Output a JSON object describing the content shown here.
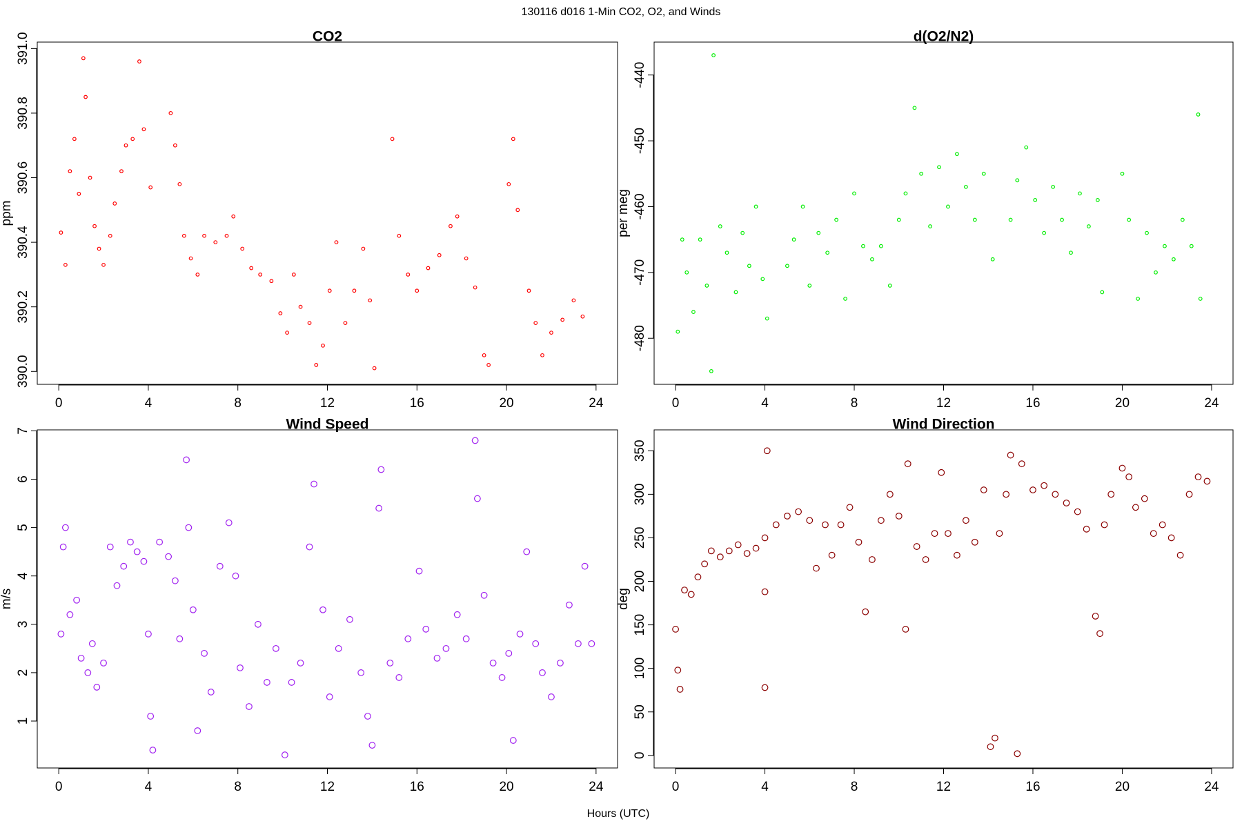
{
  "title": "130116   d016   1-Min CO2, O2, and Winds",
  "xlabel": "Hours (UTC)",
  "chart_data": [
    {
      "type": "scatter",
      "title": "CO2",
      "ylabel": "ppm",
      "color": "#ff0000",
      "xlim": [
        -0.96,
        24.96
      ],
      "xticks": [
        0,
        4,
        8,
        12,
        16,
        20,
        24
      ],
      "ylim": [
        389.96,
        391.02
      ],
      "yticks": [
        {
          "value": 390,
          "label": "390.0"
        },
        390.2,
        390.4,
        390.6,
        390.8,
        {
          "value": 391,
          "label": "391.0"
        }
      ],
      "x": [
        0.1,
        0.3,
        0.5,
        0.7,
        0.9,
        1.1,
        1.2,
        1.4,
        1.6,
        1.8,
        2.0,
        2.3,
        2.5,
        2.8,
        3.0,
        3.3,
        3.6,
        3.8,
        4.1,
        5.0,
        5.2,
        5.4,
        5.6,
        5.9,
        6.2,
        6.5,
        7.0,
        7.5,
        7.8,
        8.2,
        8.6,
        9.0,
        9.5,
        9.9,
        10.2,
        10.5,
        10.8,
        11.2,
        11.5,
        11.8,
        12.1,
        12.4,
        12.8,
        13.2,
        13.6,
        13.9,
        14.1,
        14.9,
        15.2,
        15.6,
        16.0,
        16.5,
        17.0,
        17.5,
        17.8,
        18.2,
        18.6,
        19.0,
        19.2,
        20.1,
        20.3,
        20.5,
        21.0,
        21.3,
        21.6,
        22.0,
        22.5,
        23.0,
        23.4
      ],
      "values": [
        390.43,
        390.33,
        390.62,
        390.72,
        390.55,
        390.97,
        390.85,
        390.6,
        390.45,
        390.38,
        390.33,
        390.42,
        390.52,
        390.62,
        390.7,
        390.72,
        390.96,
        390.75,
        390.57,
        390.8,
        390.7,
        390.58,
        390.42,
        390.35,
        390.3,
        390.42,
        390.4,
        390.42,
        390.48,
        390.38,
        390.32,
        390.3,
        390.28,
        390.18,
        390.12,
        390.3,
        390.2,
        390.15,
        390.02,
        390.08,
        390.25,
        390.4,
        390.15,
        390.25,
        390.38,
        390.22,
        390.01,
        390.72,
        390.42,
        390.3,
        390.25,
        390.32,
        390.36,
        390.45,
        390.48,
        390.35,
        390.26,
        390.05,
        390.02,
        390.58,
        390.72,
        390.5,
        390.25,
        390.15,
        390.05,
        390.12,
        390.16,
        390.22,
        390.17
      ]
    },
    {
      "type": "scatter",
      "title": "d(O2/N2)",
      "ylabel": "per meg",
      "color": "#00ee00",
      "xlim": [
        -0.96,
        24.96
      ],
      "xticks": [
        0,
        4,
        8,
        12,
        16,
        20,
        24
      ],
      "ylim": [
        -487,
        -435
      ],
      "yticks": [
        -480,
        -470,
        -460,
        -450,
        -440
      ],
      "x": [
        0.1,
        0.3,
        0.5,
        0.8,
        1.1,
        1.4,
        1.6,
        1.7,
        2.0,
        2.3,
        2.7,
        3.0,
        3.3,
        3.6,
        3.9,
        4.1,
        5.0,
        5.3,
        5.7,
        6.0,
        6.4,
        6.8,
        7.2,
        7.6,
        8.0,
        8.4,
        8.8,
        9.2,
        9.6,
        10.0,
        10.3,
        10.7,
        11.0,
        11.4,
        11.8,
        12.2,
        12.6,
        13.0,
        13.4,
        13.8,
        14.2,
        15.0,
        15.3,
        15.7,
        16.1,
        16.5,
        16.9,
        17.3,
        17.7,
        18.1,
        18.5,
        18.9,
        19.1,
        20.0,
        20.3,
        20.7,
        21.1,
        21.5,
        21.9,
        22.3,
        22.7,
        23.1,
        23.4,
        23.5
      ],
      "values": [
        -479,
        -465,
        -470,
        -476,
        -465,
        -472,
        -485,
        -437,
        -463,
        -467,
        -473,
        -464,
        -469,
        -460,
        -471,
        -477,
        -469,
        -465,
        -460,
        -472,
        -464,
        -467,
        -462,
        -474,
        -458,
        -466,
        -468,
        -466,
        -472,
        -462,
        -458,
        -445,
        -455,
        -463,
        -454,
        -460,
        -452,
        -457,
        -462,
        -455,
        -468,
        -462,
        -456,
        -451,
        -459,
        -464,
        -457,
        -462,
        -467,
        -458,
        -463,
        -459,
        -473,
        -455,
        -462,
        -474,
        -464,
        -470,
        -466,
        -468,
        -462,
        -466,
        -446,
        -474
      ]
    },
    {
      "type": "scatter",
      "title": "Wind Speed",
      "ylabel": "m/s",
      "color": "#a020f0",
      "xlim": [
        -0.96,
        24.96
      ],
      "xticks": [
        0,
        4,
        8,
        12,
        16,
        20,
        24
      ],
      "ylim": [
        0.03,
        7.02
      ],
      "yticks": [
        1,
        2,
        3,
        4,
        5,
        6,
        7
      ],
      "x": [
        0.1,
        0.2,
        0.3,
        0.5,
        0.8,
        1.0,
        1.3,
        1.5,
        1.7,
        2.0,
        2.3,
        2.6,
        2.9,
        3.2,
        3.5,
        3.8,
        4.0,
        4.1,
        4.2,
        4.5,
        4.9,
        5.2,
        5.4,
        5.7,
        5.8,
        6.0,
        6.2,
        6.5,
        6.8,
        7.2,
        7.6,
        7.9,
        8.1,
        8.5,
        8.9,
        9.3,
        9.7,
        10.1,
        10.4,
        10.8,
        11.2,
        11.4,
        11.8,
        12.1,
        12.5,
        13.0,
        13.5,
        13.8,
        14.0,
        14.3,
        14.4,
        14.8,
        15.2,
        15.6,
        16.1,
        16.4,
        16.9,
        17.3,
        17.8,
        18.2,
        18.6,
        18.7,
        19.0,
        19.4,
        19.8,
        20.1,
        20.3,
        20.6,
        20.9,
        21.3,
        21.6,
        22.0,
        22.4,
        22.8,
        23.2,
        23.5,
        23.8
      ],
      "values": [
        2.8,
        4.6,
        5.0,
        3.2,
        3.5,
        2.3,
        2.0,
        2.6,
        1.7,
        2.2,
        4.6,
        3.8,
        4.2,
        4.7,
        4.5,
        4.3,
        2.8,
        1.1,
        0.4,
        4.7,
        4.4,
        3.9,
        2.7,
        6.4,
        5.0,
        3.3,
        0.8,
        2.4,
        1.6,
        4.2,
        5.1,
        4.0,
        2.1,
        1.3,
        3.0,
        1.8,
        2.5,
        0.3,
        1.8,
        2.2,
        4.6,
        5.9,
        3.3,
        1.5,
        2.5,
        3.1,
        2.0,
        1.1,
        0.5,
        5.4,
        6.2,
        2.2,
        1.9,
        2.7,
        4.1,
        2.9,
        2.3,
        2.5,
        3.2,
        2.7,
        6.8,
        5.6,
        3.6,
        2.2,
        1.9,
        2.4,
        0.6,
        2.8,
        4.5,
        2.6,
        2.0,
        1.5,
        2.2,
        3.4,
        2.6,
        4.2,
        2.6
      ]
    },
    {
      "type": "scatter",
      "title": "Wind Direction",
      "ylabel": "deg",
      "color": "#8b0000",
      "xlim": [
        -0.96,
        24.96
      ],
      "xticks": [
        0,
        4,
        8,
        12,
        16,
        20,
        24
      ],
      "ylim": [
        -14.4,
        374
      ],
      "yticks": [
        0,
        50,
        100,
        150,
        200,
        250,
        300,
        350
      ],
      "x": [
        0.0,
        0.1,
        0.2,
        0.4,
        0.7,
        1.0,
        1.3,
        1.6,
        2.0,
        2.4,
        2.8,
        3.2,
        3.6,
        4.0,
        4.0,
        4.0,
        4.1,
        4.5,
        5.0,
        5.5,
        6.0,
        6.3,
        6.7,
        7.0,
        7.4,
        7.8,
        8.2,
        8.5,
        8.8,
        9.2,
        9.6,
        10.0,
        10.3,
        10.4,
        10.8,
        11.2,
        11.6,
        11.9,
        12.2,
        12.6,
        13.0,
        13.4,
        13.8,
        14.1,
        14.3,
        14.5,
        14.8,
        15.0,
        15.3,
        15.5,
        16.0,
        16.5,
        17.0,
        17.5,
        18.0,
        18.4,
        18.8,
        19.0,
        19.2,
        19.5,
        20.0,
        20.3,
        20.6,
        21.0,
        21.4,
        21.8,
        22.2,
        22.6,
        23.0,
        23.4,
        23.8
      ],
      "values": [
        145,
        98,
        76,
        190,
        185,
        205,
        220,
        235,
        228,
        235,
        242,
        232,
        238,
        250,
        188,
        78,
        350,
        265,
        275,
        280,
        270,
        215,
        265,
        230,
        265,
        285,
        245,
        165,
        225,
        270,
        300,
        275,
        145,
        335,
        240,
        225,
        255,
        325,
        255,
        230,
        270,
        245,
        305,
        10,
        20,
        255,
        300,
        345,
        2,
        335,
        305,
        310,
        300,
        290,
        280,
        260,
        160,
        140,
        265,
        300,
        330,
        320,
        285,
        295,
        255,
        265,
        250,
        230,
        300,
        320,
        315
      ]
    }
  ]
}
